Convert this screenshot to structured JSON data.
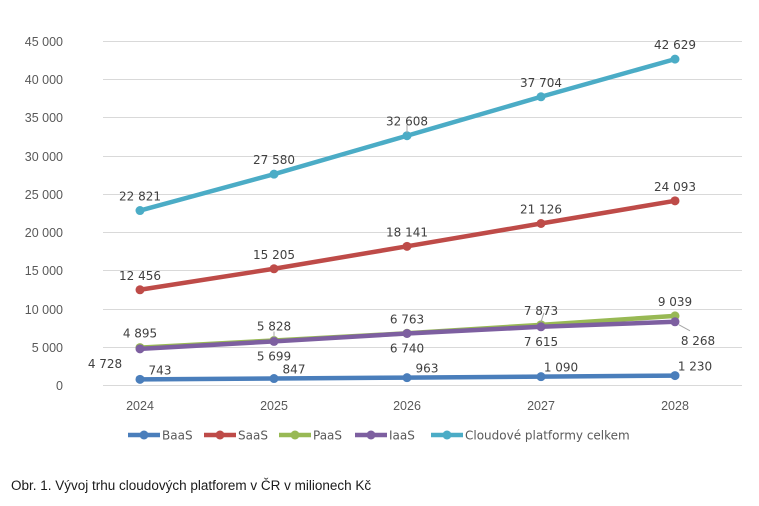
{
  "caption": "Obr. 1. Vývoj trhu cloudových platforem v ČR v milionech Kč",
  "chart_data": {
    "type": "line",
    "title": "",
    "xlabel": "",
    "ylabel": "",
    "categories": [
      "2024",
      "2025",
      "2026",
      "2027",
      "2028"
    ],
    "ylim": [
      0,
      45000
    ],
    "yticks": [
      0,
      5000,
      10000,
      15000,
      20000,
      25000,
      30000,
      35000,
      40000,
      45000
    ],
    "ytick_labels": [
      "0",
      "5 000",
      "10 000",
      "15 000",
      "20 000",
      "25 000",
      "30 000",
      "35 000",
      "40 000",
      "45 000"
    ],
    "grid": true,
    "legend_position": "bottom",
    "series": [
      {
        "name": "BaaS",
        "color": "#4a7ebb",
        "values": [
          743,
          847,
          963,
          1090,
          1230
        ],
        "labels": [
          "743",
          "847",
          "963",
          "1 090",
          "1 230"
        ],
        "label_pos": "above"
      },
      {
        "name": "SaaS",
        "color": "#be4b48",
        "values": [
          12456,
          15205,
          18141,
          21126,
          24093
        ],
        "labels": [
          "12 456",
          "15 205",
          "18 141",
          "21 126",
          "24 093"
        ],
        "label_pos": "above"
      },
      {
        "name": "PaaS",
        "color": "#98b954",
        "values": [
          4895,
          5828,
          6763,
          7873,
          9039
        ],
        "labels": [
          "4 895",
          "5 828",
          "6 763",
          "7 873",
          "9 039"
        ],
        "label_pos": "above"
      },
      {
        "name": "IaaS",
        "color": "#7d5fa0",
        "values": [
          4728,
          5699,
          6740,
          7615,
          8268
        ],
        "labels": [
          "4 728",
          "5 699",
          "6 740",
          "7 615",
          "8 268"
        ],
        "label_pos": "below"
      },
      {
        "name": "Cloudové platformy celkem",
        "color": "#4bacc6",
        "values": [
          22821,
          27580,
          32608,
          37704,
          42629
        ],
        "labels": [
          "22 821",
          "27 580",
          "32 608",
          "37 704",
          "42 629"
        ],
        "label_pos": "above"
      }
    ]
  }
}
